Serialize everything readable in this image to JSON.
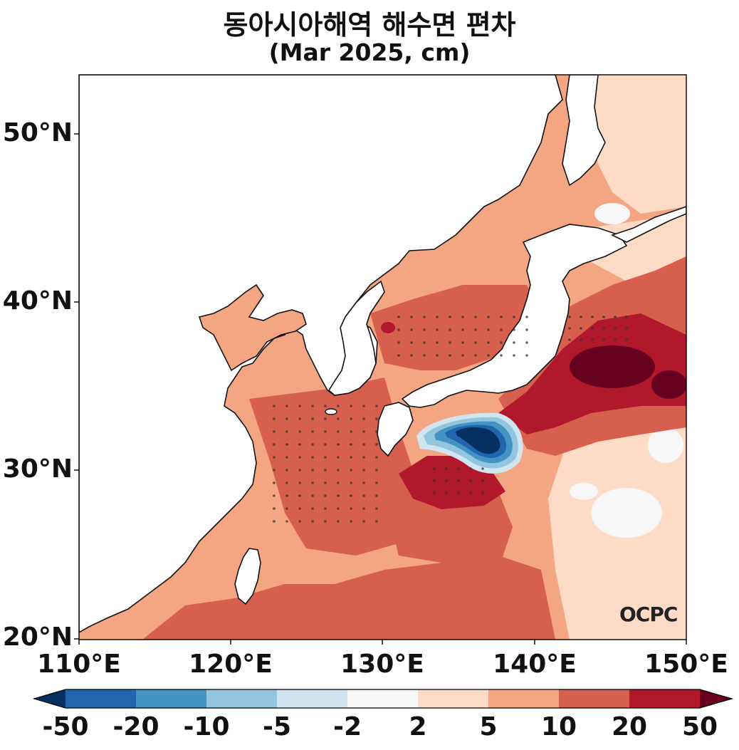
{
  "title": "동아시아해역 해수면 편차",
  "subtitle": "(Mar 2025, cm)",
  "map": {
    "lat_labels": [
      "50°N",
      "40°N",
      "30°N",
      "20°N"
    ],
    "lon_labels": [
      "110°E",
      "120°E",
      "130°E",
      "140°E",
      "150°E"
    ],
    "extent": {
      "lon": [
        110,
        150
      ],
      "lat": [
        20,
        53.5
      ]
    },
    "logo": "OCPC"
  },
  "colorbar": {
    "labels": [
      "-50",
      "-20",
      "-10",
      "-5",
      "-2",
      "2",
      "5",
      "10",
      "20",
      "50"
    ],
    "colors": [
      "#053061",
      "#2166ac",
      "#4393c3",
      "#92c5de",
      "#d1e5f0",
      "#f7f7f7",
      "#fddbc7",
      "#f4a582",
      "#d6604d",
      "#b2182b",
      "#67001f"
    ]
  }
}
